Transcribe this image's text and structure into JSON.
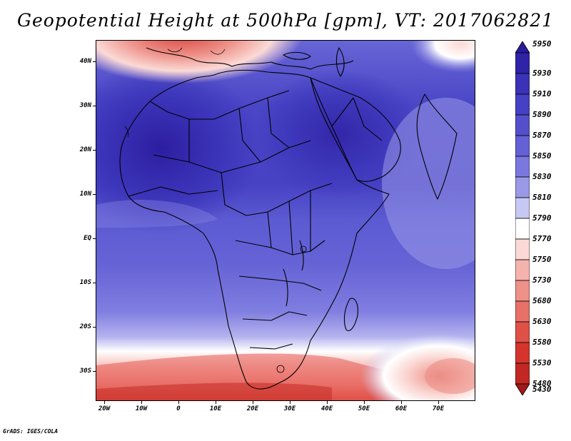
{
  "title": "Geopotential Height at 500hPa [gpm], VT: 2017062821",
  "credit": "GrADS: IGES/COLA",
  "map": {
    "variable": "Geopotential Height",
    "level": "500hPa",
    "units": "gpm",
    "valid_time": "2017062821",
    "lat_labels": [
      "40N",
      "30N",
      "20N",
      "10N",
      "EQ",
      "10S",
      "20S",
      "30S"
    ],
    "lon_labels": [
      "20W",
      "10W",
      "0",
      "10E",
      "20E",
      "30E",
      "40E",
      "50E",
      "60E",
      "70E"
    ]
  },
  "colorbar": {
    "levels": [
      "5950",
      "5930",
      "5910",
      "5890",
      "5870",
      "5850",
      "5830",
      "5810",
      "5790",
      "5770",
      "5750",
      "5730",
      "5680",
      "5630",
      "5580",
      "5530",
      "5480",
      "5430"
    ],
    "colors": [
      "#2a1a9c",
      "#2f23a8",
      "#3a33b8",
      "#4640c4",
      "#5450cc",
      "#6461d6",
      "#7a78df",
      "#9a99e8",
      "#c8c8f4",
      "#ffffff",
      "#fbd9d6",
      "#f5b3ae",
      "#ee9188",
      "#e77068",
      "#df5047",
      "#d5342c",
      "#c12723",
      "#a01a1a"
    ]
  }
}
